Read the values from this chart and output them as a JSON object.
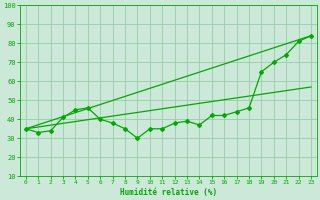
{
  "xlabel": "Humidité relative (%)",
  "bg_color": "#cce8d8",
  "grid_color": "#99ccaa",
  "line_color": "#00aa00",
  "xlim": [
    -0.5,
    23.5
  ],
  "ylim": [
    10,
    100
  ],
  "yticks": [
    10,
    20,
    30,
    40,
    50,
    60,
    70,
    80,
    90,
    100
  ],
  "xticks": [
    0,
    1,
    2,
    3,
    4,
    5,
    6,
    7,
    8,
    9,
    10,
    11,
    12,
    13,
    14,
    15,
    16,
    17,
    18,
    19,
    20,
    21,
    22,
    23
  ],
  "line1_x": [
    0,
    1,
    2,
    3,
    4,
    5,
    6,
    7,
    8,
    9,
    10,
    11,
    12,
    13,
    14,
    15,
    16,
    17,
    18,
    19,
    20,
    21,
    22,
    23
  ],
  "line1_y": [
    35,
    33,
    34,
    41,
    45,
    46,
    40,
    38,
    35,
    30,
    35,
    35,
    38,
    39,
    37,
    42,
    42,
    44,
    46,
    65,
    70,
    74,
    81,
    84
  ],
  "line2_x": [
    0,
    23
  ],
  "line2_y": [
    35,
    84
  ],
  "line3_x": [
    0,
    23
  ],
  "line3_y": [
    35,
    57
  ]
}
